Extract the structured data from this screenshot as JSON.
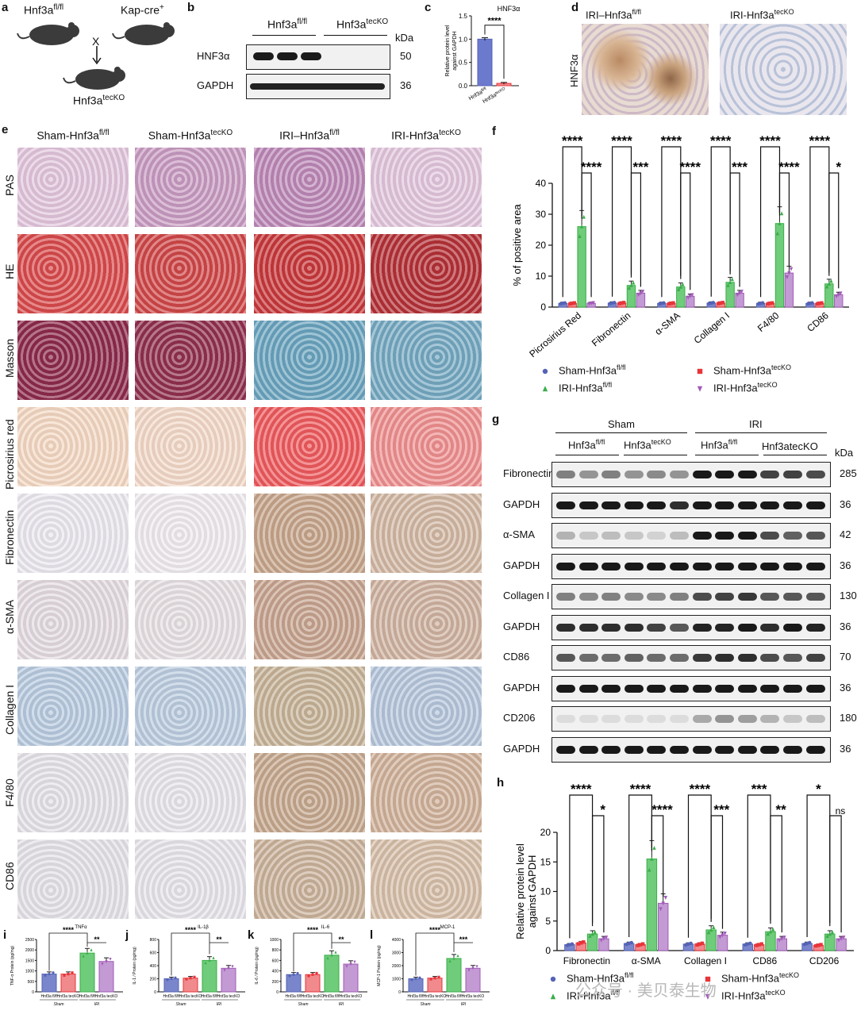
{
  "colors": {
    "sham_fl": "#5463b5",
    "sham_tec": "#e8353a",
    "iri_fl": "#3aae4a",
    "iri_tec": "#a15bb8"
  },
  "panel_a": {
    "label": "a",
    "mouse1_title": "Hnf3a",
    "mouse1_sup": "fl/fl",
    "mouse2_title": "Kap-cre",
    "mouse2_sup": "+",
    "cross": "X",
    "result_title": "Hnf3a",
    "result_sup": "tecKO",
    "icons": [
      "mouse-icon",
      "mouse-icon",
      "mouse-icon"
    ]
  },
  "panel_b": {
    "label": "b",
    "group1": "Hnf3a",
    "group1_sup": "fl/fl",
    "group2": "Hnf3a",
    "group2_sup": "tecKO",
    "kda_header": "kDa",
    "rows": [
      {
        "name": "HNF3α",
        "kda": "50"
      },
      {
        "name": "GAPDH",
        "kda": "36"
      }
    ]
  },
  "panel_d": {
    "label": "d",
    "row_label": "HNF3α",
    "col1": "IRI–Hnf3a",
    "col1_sup": "fl/fl",
    "col2": "IRI-Hnf3a",
    "col2_sup": "tecKO"
  },
  "panel_e": {
    "label": "e",
    "columns": [
      {
        "pre": "Sham-Hnf3a",
        "sup": "fl/fl"
      },
      {
        "pre": "Sham-Hnf3a",
        "sup": "tecKO"
      },
      {
        "pre": "IRI–Hnf3a",
        "sup": "fl/fl"
      },
      {
        "pre": "IRI-Hnf3a",
        "sup": "tecKO"
      }
    ],
    "rows": [
      "PAS",
      "HE",
      "Masson",
      "Picrosirius red",
      "Fibronectin",
      "α-SMA",
      "Collagen I",
      "F4/80",
      "CD86"
    ]
  },
  "panel_g": {
    "label": "g",
    "sham": "Sham",
    "iri": "IRI",
    "sub_fl": "Hnf3a",
    "sub_fl_sup": "fl/fl",
    "sub_tec": "Hnf3a",
    "sub_tec_sup": "tecKO",
    "sub_iri_fl": "Hnf3a",
    "sub_iri_fl_sup": "fl/fl",
    "sub_iri_tec": "Hnf3atecKO",
    "kda_header": "kDa",
    "rows": [
      {
        "name": "Fibronectin",
        "kda": "285"
      },
      {
        "name": "GAPDH",
        "kda": "36"
      },
      {
        "name": "α-SMA",
        "kda": "42"
      },
      {
        "name": "GAPDH",
        "kda": "36"
      },
      {
        "name": "Collagen I",
        "kda": "130"
      },
      {
        "name": "GAPDH",
        "kda": "36"
      },
      {
        "name": "CD86",
        "kda": "70"
      },
      {
        "name": "GAPDH",
        "kda": "36"
      },
      {
        "name": "CD206",
        "kda": "180"
      },
      {
        "name": "GAPDH",
        "kda": "36"
      }
    ]
  },
  "legend_f": [
    {
      "name": "Sham-Hnf3a",
      "sup": "fl/fl"
    },
    {
      "name": "Sham-Hnf3a",
      "sup": "tecKO"
    },
    {
      "name": "IRI-Hnf3a",
      "sup": "fl/fl"
    },
    {
      "name": "IRI-Hnf3a",
      "sup": "tecKO"
    }
  ],
  "legend_h": [
    {
      "name": "Sham-Hnf3a",
      "sup": "fl/fl"
    },
    {
      "name": "Sham-Hnf3a",
      "sup": "tecKO"
    },
    {
      "name": "IRI-Hnf3a",
      "sup": "fl/fl"
    },
    {
      "name": "IRI-Hnf3a",
      "sup": "tecKO"
    }
  ],
  "watermark": "公众号 · 美贝泰生物",
  "chart_data": [
    {
      "id": "c",
      "type": "bar",
      "label": "c",
      "title": "HNF3α",
      "ylabel": "Relative protein level against GAPDH",
      "categories": [
        "Hnf3a fl/fl",
        "Hnf3a tecKO"
      ],
      "cat_labels": [
        "Hnf3a",
        "Hnf3a"
      ],
      "cat_sups": [
        "fl/fl",
        "tecKO"
      ],
      "values": [
        1.0,
        0.05
      ],
      "errors": [
        0.03,
        0.02
      ],
      "ylim": [
        0,
        1.5
      ],
      "yticks": [
        0.0,
        0.5,
        1.0,
        1.5
      ],
      "tick_labels": [
        "0.0",
        "0.5",
        "1.0",
        "1.5"
      ],
      "significance": "****"
    },
    {
      "id": "f",
      "type": "bar",
      "label": "f",
      "ylabel": "% of positive  area",
      "categories": [
        "Picrosirius Red",
        "Fibronectin",
        "α-SMA",
        "Collagen I",
        "F4/80",
        "CD86"
      ],
      "series": [
        {
          "name": "Sham-Hnf3a fl/fl",
          "values": [
            1.2,
            1.3,
            1.2,
            1.3,
            1.2,
            1.2
          ]
        },
        {
          "name": "Sham-Hnf3a tecKO",
          "values": [
            1.2,
            1.3,
            1.2,
            1.3,
            1.2,
            1.2
          ]
        },
        {
          "name": "IRI-Hnf3a fl/fl",
          "values": [
            26,
            7,
            6.5,
            8,
            27,
            7.5
          ]
        },
        {
          "name": "IRI-Hnf3a tecKO",
          "values": [
            1.2,
            4.5,
            3.5,
            4.5,
            11,
            4
          ]
        }
      ],
      "ylim": [
        0,
        40
      ],
      "yticks": [
        0,
        10,
        20,
        30,
        40
      ],
      "tick_labels": [
        "0",
        "10",
        "20",
        "30",
        "40"
      ],
      "sig_outer": [
        "****",
        "****",
        "****",
        "****",
        "****",
        "****"
      ],
      "sig_inner": [
        "****",
        "***",
        "****",
        "***",
        "****",
        "*"
      ]
    },
    {
      "id": "h",
      "type": "bar",
      "label": "h",
      "ylabel": "Relative protein level against GAPDH",
      "categories": [
        "Fibronectin",
        "α-SMA",
        "Collagen I",
        "CD86",
        "CD206"
      ],
      "series": [
        {
          "name": "Sham-Hnf3a fl/fl",
          "values": [
            1.0,
            1.2,
            1.1,
            1.1,
            1.2
          ]
        },
        {
          "name": "Sham-Hnf3a tecKO",
          "values": [
            1.3,
            1.0,
            1.1,
            1.0,
            0.9
          ]
        },
        {
          "name": "IRI-Hnf3a fl/fl",
          "values": [
            2.8,
            15.5,
            3.5,
            3.2,
            2.8
          ]
        },
        {
          "name": "IRI-Hnf3a tecKO",
          "values": [
            2.0,
            8.0,
            2.6,
            2.0,
            2.0
          ]
        }
      ],
      "ylim": [
        0,
        20
      ],
      "yticks": [
        0,
        5,
        10,
        15,
        20
      ],
      "tick_labels": [
        "0",
        "5",
        "10",
        "15",
        "20"
      ],
      "sig_outer": [
        "****",
        "****",
        "****",
        "***",
        "*"
      ],
      "sig_inner": [
        "*",
        "****",
        "***",
        "**",
        "ns"
      ]
    },
    {
      "id": "i",
      "type": "bar",
      "label": "i",
      "title": "TNFα",
      "ylabel": "TNF-α Protein (pg/mg)",
      "values": [
        850,
        850,
        1850,
        1450
      ],
      "ylim": [
        0,
        2500
      ],
      "yticks": [
        0,
        500,
        1000,
        1500,
        2000,
        2500
      ],
      "tick_labels": [
        "0",
        "500",
        "1000",
        "1500",
        "2000",
        "2500"
      ],
      "xlabels": [
        "Hnf3a fl/fl",
        "Hnf3a tecKO",
        "Hnf3a fl/fl",
        "Hnf3a tecKO"
      ],
      "groups": [
        "Sham",
        "IRI"
      ],
      "sig_outer": "****",
      "sig_inner": "**"
    },
    {
      "id": "j",
      "type": "bar",
      "label": "j",
      "title": "IL-1β",
      "ylabel": "IL-1 / Protein (pg/mg)",
      "values": [
        200,
        210,
        480,
        360
      ],
      "ylim": [
        0,
        800
      ],
      "yticks": [
        0,
        200,
        400,
        600,
        800
      ],
      "tick_labels": [
        "0",
        "200",
        "400",
        "600",
        "800"
      ],
      "xlabels": [
        "Hnf3a fl/fl",
        "Hnf3a tecKO",
        "Hnf3a fl/fl",
        "Hnf3a tecKO"
      ],
      "groups": [
        "Sham",
        "IRI"
      ],
      "sig_outer": "****",
      "sig_inner": "**"
    },
    {
      "id": "k",
      "type": "bar",
      "label": "k",
      "title": "IL-6",
      "ylabel": "IL-6 / Protein (pg/mg)",
      "values": [
        330,
        330,
        700,
        530
      ],
      "ylim": [
        0,
        1000
      ],
      "yticks": [
        0,
        200,
        400,
        600,
        800,
        1000
      ],
      "tick_labels": [
        "0",
        "200",
        "400",
        "600",
        "800",
        "1000"
      ],
      "xlabels": [
        "Hnf3a fl/fl",
        "Hnf3a tecKO",
        "Hnf3a fl/fl",
        "Hnf3a tecKO"
      ],
      "groups": [
        "Sham",
        "IRI"
      ],
      "sig_outer": "****",
      "sig_inner": "**"
    },
    {
      "id": "l",
      "type": "bar",
      "label": "l",
      "title": "MCP-1",
      "ylabel": "MCP-1 Protein (pg/mg)",
      "values": [
        1000,
        1050,
        2550,
        1800
      ],
      "ylim": [
        0,
        4000
      ],
      "yticks": [
        0,
        1000,
        2000,
        3000,
        4000
      ],
      "tick_labels": [
        "0",
        "1000",
        "2000",
        "3000",
        "4000"
      ],
      "xlabels": [
        "Hnf3a fl/fl",
        "Hnf3a tecKO",
        "Hnf3a fl/fl",
        "Hnf3a tecKO"
      ],
      "groups": [
        "Sham",
        "IRI"
      ],
      "sig_outer": "****",
      "sig_inner": "***"
    }
  ]
}
